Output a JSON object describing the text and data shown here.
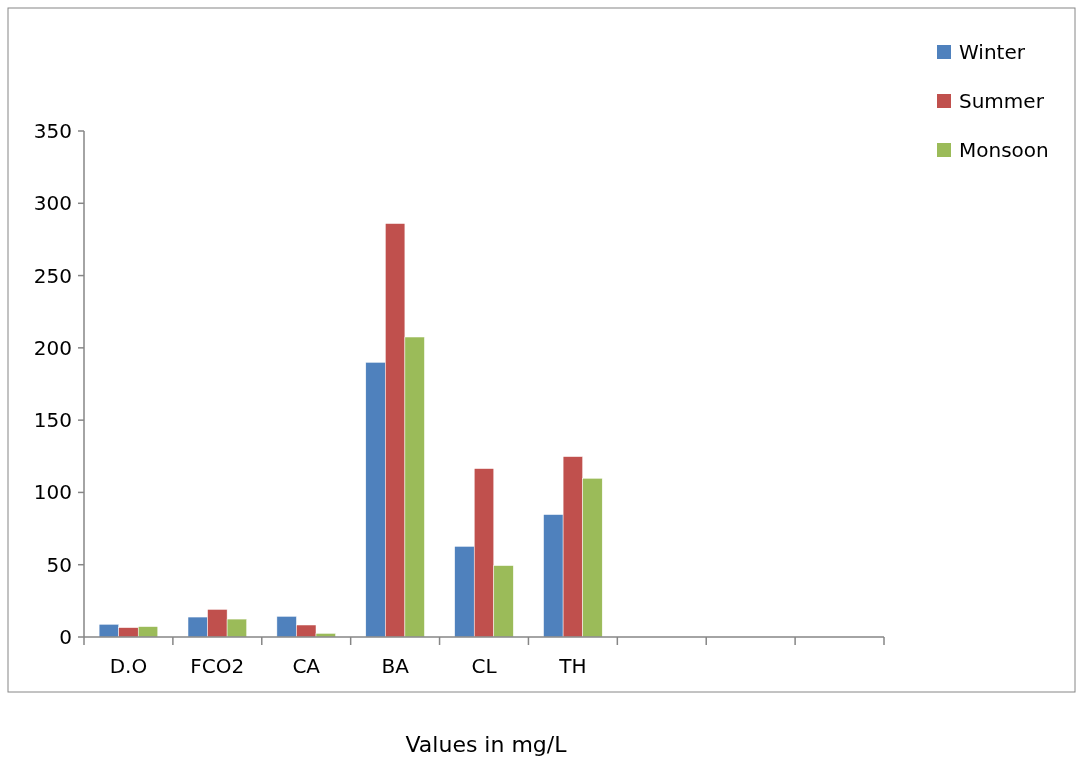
{
  "chart_data": {
    "type": "bar",
    "xlabel": "Values in mg/L",
    "categories": [
      "D.O",
      "FCO2",
      "CA",
      "BA",
      "CL",
      "TH",
      null,
      null,
      null
    ],
    "series": [
      {
        "name": "Winter",
        "color": "#4f81bd",
        "values": [
          8.8,
          13.8,
          14.3,
          190,
          62.7,
          84.7,
          null,
          null,
          null
        ]
      },
      {
        "name": "Summer",
        "color": "#c0504d",
        "values": [
          6.5,
          19.1,
          8.3,
          286,
          116.5,
          124.8,
          null,
          null,
          null
        ]
      },
      {
        "name": "Monsoon",
        "color": "#9bbb59",
        "values": [
          7.2,
          12.4,
          2.5,
          207.5,
          49.4,
          109.8,
          null,
          null,
          null
        ]
      }
    ],
    "ylim": [
      0,
      350
    ],
    "yticks": [
      0,
      50,
      100,
      150,
      200,
      250,
      300,
      350
    ],
    "grid": false,
    "legend": "top right"
  }
}
